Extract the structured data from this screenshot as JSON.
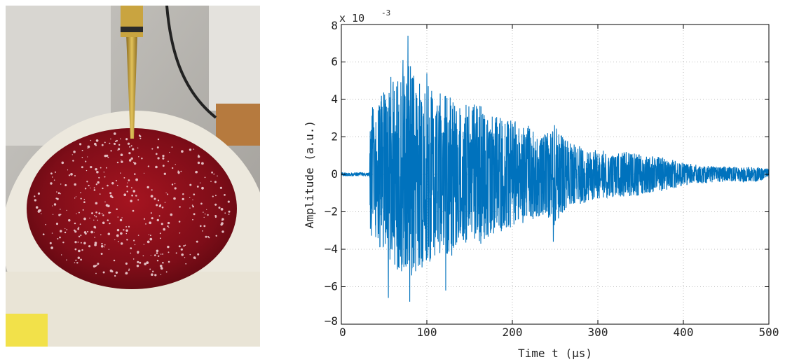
{
  "photo": {
    "description_icon": "photo-icon"
  },
  "chart_data": {
    "type": "line",
    "xlabel": "Time t (µs)",
    "ylabel": "Amplitude (a.u.)",
    "exponent_label": "x 10",
    "exponent_power": "-3",
    "xlim": [
      0,
      500
    ],
    "ylim": [
      -8,
      8
    ],
    "x_ticks": [
      "0",
      "100",
      "200",
      "300",
      "400",
      "500"
    ],
    "y_ticks": [
      "−8",
      "−6",
      "−4",
      "−2",
      "0",
      "2",
      "4",
      "6",
      "8"
    ],
    "grid": true,
    "series": [
      {
        "color": "#0072BD",
        "envelope": {
          "t": [
            0,
            33,
            34,
            40,
            50,
            60,
            70,
            80,
            90,
            100,
            110,
            120,
            130,
            140,
            150,
            160,
            170,
            180,
            190,
            200,
            210,
            220,
            230,
            240,
            250,
            260,
            270,
            280,
            290,
            300,
            320,
            340,
            360,
            380,
            400,
            420,
            440,
            460,
            480,
            500
          ],
          "amp": [
            0.1,
            0.1,
            3.8,
            3.5,
            4.6,
            5.0,
            5.2,
            6.0,
            5.2,
            4.8,
            4.5,
            4.2,
            4.5,
            3.6,
            3.8,
            3.8,
            3.5,
            3.2,
            3.0,
            3.0,
            2.6,
            2.6,
            2.4,
            2.2,
            2.8,
            2.0,
            1.6,
            1.6,
            1.4,
            1.3,
            1.2,
            1.2,
            1.0,
            0.9,
            0.6,
            0.5,
            0.4,
            0.4,
            0.4,
            0.3
          ]
        },
        "peaks": [
          {
            "t": 78,
            "y": 7.4
          },
          {
            "t": 80,
            "y": -6.8
          },
          {
            "t": 55,
            "y": -6.6
          },
          {
            "t": 72,
            "y": 6.1
          },
          {
            "t": 100,
            "y": 5.4
          },
          {
            "t": 122,
            "y": -6.2
          },
          {
            "t": 248,
            "y": 3.8
          },
          {
            "t": 248,
            "y": -3.6
          },
          {
            "t": 58,
            "y": 5.2
          }
        ]
      }
    ]
  }
}
